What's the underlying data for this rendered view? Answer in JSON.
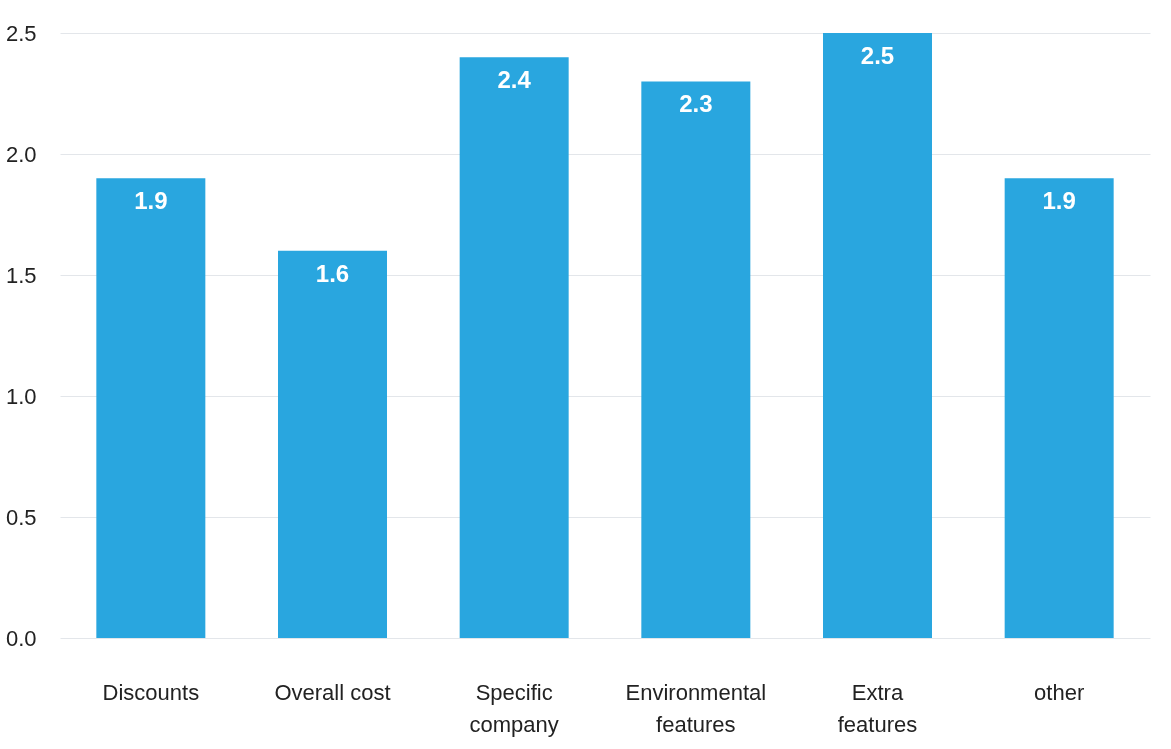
{
  "chart_data": {
    "type": "bar",
    "categories": [
      "Discounts",
      "Overall cost",
      "Specific company",
      "Environmental features",
      "Extra features",
      "other"
    ],
    "values": [
      1.9,
      1.6,
      2.4,
      2.3,
      2.5,
      1.9
    ],
    "color": "#29a6df",
    "ylim": [
      0,
      2.5
    ],
    "yticks": [
      {
        "value": 0,
        "label": "0.0"
      },
      0.5,
      {
        "value": 1,
        "label": "1.0"
      },
      1.5,
      {
        "value": 2,
        "label": "2.0"
      },
      2.5
    ],
    "grid": "y",
    "data_labels": true
  }
}
